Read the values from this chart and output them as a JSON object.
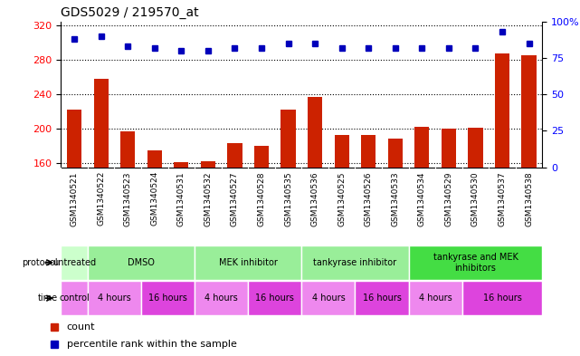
{
  "title": "GDS5029 / 219570_at",
  "samples": [
    "GSM1340521",
    "GSM1340522",
    "GSM1340523",
    "GSM1340524",
    "GSM1340531",
    "GSM1340532",
    "GSM1340527",
    "GSM1340528",
    "GSM1340535",
    "GSM1340536",
    "GSM1340525",
    "GSM1340526",
    "GSM1340533",
    "GSM1340534",
    "GSM1340529",
    "GSM1340530",
    "GSM1340537",
    "GSM1340538"
  ],
  "counts": [
    222,
    258,
    197,
    175,
    161,
    162,
    183,
    180,
    222,
    237,
    193,
    193,
    188,
    202,
    200,
    201,
    288,
    286
  ],
  "percentile_ranks": [
    88,
    90,
    83,
    82,
    80,
    80,
    82,
    82,
    85,
    85,
    82,
    82,
    82,
    82,
    82,
    82,
    93,
    85
  ],
  "ylim_left": [
    155,
    325
  ],
  "ylim_right": [
    0,
    100
  ],
  "yticks_left": [
    160,
    200,
    240,
    280,
    320
  ],
  "yticks_right": [
    0,
    25,
    50,
    75,
    100
  ],
  "bar_color": "#cc2200",
  "dot_color": "#0000bb",
  "bar_width": 0.55,
  "protocols": [
    {
      "label": "untreated",
      "start": 0,
      "end": 1,
      "color": "#ccffcc"
    },
    {
      "label": "DMSO",
      "start": 1,
      "end": 5,
      "color": "#99ee99"
    },
    {
      "label": "MEK inhibitor",
      "start": 5,
      "end": 9,
      "color": "#99ee99"
    },
    {
      "label": "tankyrase inhibitor",
      "start": 9,
      "end": 13,
      "color": "#99ee99"
    },
    {
      "label": "tankyrase and MEK\ninhibitors",
      "start": 13,
      "end": 18,
      "color": "#44dd44"
    }
  ],
  "times": [
    {
      "label": "control",
      "start": 0,
      "end": 1,
      "color": "#ee88ee"
    },
    {
      "label": "4 hours",
      "start": 1,
      "end": 3,
      "color": "#ee88ee"
    },
    {
      "label": "16 hours",
      "start": 3,
      "end": 5,
      "color": "#dd44dd"
    },
    {
      "label": "4 hours",
      "start": 5,
      "end": 7,
      "color": "#ee88ee"
    },
    {
      "label": "16 hours",
      "start": 7,
      "end": 9,
      "color": "#dd44dd"
    },
    {
      "label": "4 hours",
      "start": 9,
      "end": 11,
      "color": "#ee88ee"
    },
    {
      "label": "16 hours",
      "start": 11,
      "end": 13,
      "color": "#dd44dd"
    },
    {
      "label": "4 hours",
      "start": 13,
      "end": 15,
      "color": "#ee88ee"
    },
    {
      "label": "16 hours",
      "start": 15,
      "end": 18,
      "color": "#dd44dd"
    }
  ],
  "bg_color": "#ffffff",
  "chart_bg": "#ffffff",
  "tick_area_bg": "#d8d8d8"
}
